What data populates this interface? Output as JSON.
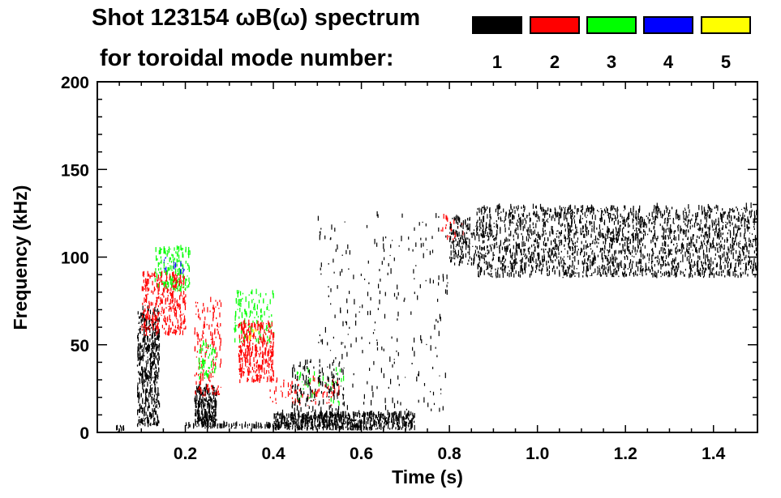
{
  "chart_data": {
    "type": "heatmap",
    "title": "Shot 123154 ωB(ω) spectrum",
    "subtitle": "for toroidal mode number:",
    "xlabel": "Time (s)",
    "ylabel": "Frequency (kHz)",
    "xlim": [
      0,
      1.5
    ],
    "ylim": [
      0,
      200
    ],
    "xticks": [
      0.2,
      0.4,
      0.6,
      0.8,
      1.0,
      1.2,
      1.4
    ],
    "xtick_labels": [
      "0.2",
      "0.4",
      "0.6",
      "0.8",
      "1.0",
      "1.2",
      "1.4"
    ],
    "yticks": [
      0,
      50,
      100,
      150,
      200
    ],
    "ytick_labels": [
      "0",
      "50",
      "100",
      "150",
      "200"
    ],
    "legend": [
      {
        "mode": "1",
        "color": "#000000"
      },
      {
        "mode": "2",
        "color": "#ff0000"
      },
      {
        "mode": "3",
        "color": "#00ff00"
      },
      {
        "mode": "4",
        "color": "#0000ff"
      },
      {
        "mode": "5",
        "color": "#ffff00"
      }
    ],
    "legend_placement": "top-right",
    "features": [
      {
        "mode": 1,
        "t": [
          0.09,
          0.14
        ],
        "f": [
          3,
          70
        ],
        "density": 500
      },
      {
        "mode": 1,
        "t": [
          0.04,
          0.06
        ],
        "f": [
          0,
          3
        ],
        "density": 10
      },
      {
        "mode": 2,
        "t": [
          0.1,
          0.2
        ],
        "f": [
          55,
          90
        ],
        "density": 350
      },
      {
        "mode": 3,
        "t": [
          0.13,
          0.21
        ],
        "f": [
          80,
          105
        ],
        "density": 150
      },
      {
        "mode": 4,
        "t": [
          0.15,
          0.2
        ],
        "f": [
          90,
          100
        ],
        "density": 15
      },
      {
        "mode": 1,
        "t": [
          0.22,
          0.27
        ],
        "f": [
          2,
          25
        ],
        "density": 250
      },
      {
        "mode": 2,
        "t": [
          0.22,
          0.28
        ],
        "f": [
          20,
          75
        ],
        "density": 150
      },
      {
        "mode": 3,
        "t": [
          0.23,
          0.27
        ],
        "f": [
          30,
          50
        ],
        "density": 60
      },
      {
        "mode": 1,
        "t": [
          0.2,
          0.4
        ],
        "f": [
          2,
          4
        ],
        "density": 80
      },
      {
        "mode": 3,
        "t": [
          0.31,
          0.4
        ],
        "f": [
          50,
          80
        ],
        "density": 120
      },
      {
        "mode": 2,
        "t": [
          0.32,
          0.4
        ],
        "f": [
          28,
          62
        ],
        "density": 350
      },
      {
        "mode": 2,
        "t": [
          0.38,
          0.55
        ],
        "f": [
          15,
          30
        ],
        "density": 80
      },
      {
        "mode": 3,
        "t": [
          0.45,
          0.56
        ],
        "f": [
          15,
          35
        ],
        "density": 40
      },
      {
        "mode": 1,
        "t": [
          0.4,
          0.72
        ],
        "f": [
          1,
          10
        ],
        "density": 700
      },
      {
        "mode": 1,
        "t": [
          0.44,
          0.56
        ],
        "f": [
          5,
          40
        ],
        "density": 150
      },
      {
        "mode": 1,
        "t": [
          0.5,
          0.8
        ],
        "f": [
          10,
          125
        ],
        "density": 250
      },
      {
        "mode": 2,
        "t": [
          0.78,
          0.83
        ],
        "f": [
          108,
          122
        ],
        "density": 25
      },
      {
        "mode": 1,
        "t": [
          0.8,
          0.86
        ],
        "f": [
          95,
          122
        ],
        "density": 150
      },
      {
        "mode": 1,
        "t": [
          0.86,
          1.5
        ],
        "f": [
          88,
          128
        ],
        "density": 2200
      },
      {
        "mode": 5,
        "t": [
          0.33,
          0.36
        ],
        "f": [
          50,
          60
        ],
        "density": 5
      }
    ]
  }
}
